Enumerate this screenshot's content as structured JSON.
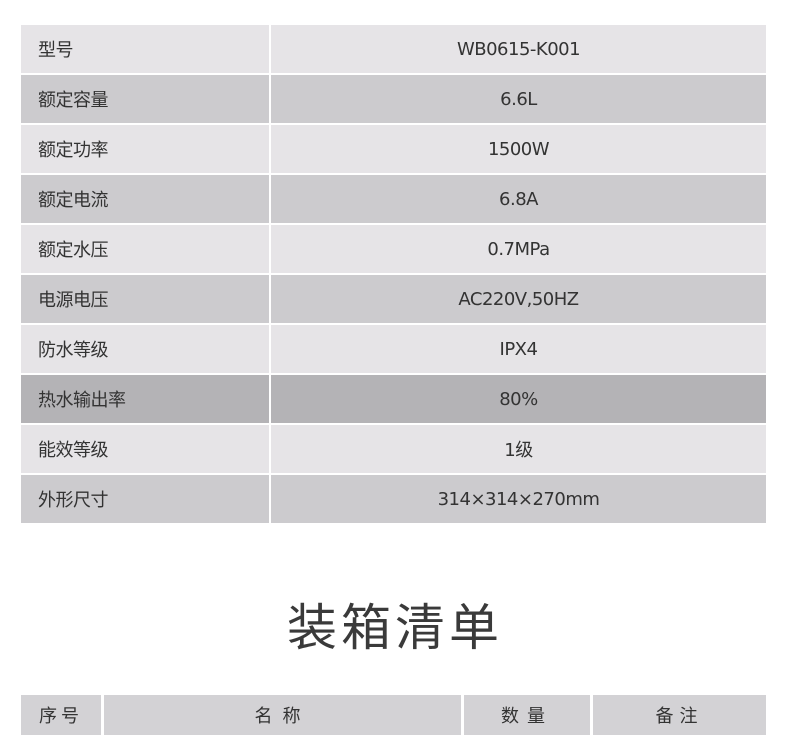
{
  "specs": [
    {
      "label": "型号",
      "value": "WB0615-K001"
    },
    {
      "label": "额定容量",
      "value": "6.6L"
    },
    {
      "label": "额定功率",
      "value": "1500W"
    },
    {
      "label": "额定电流",
      "value": "6.8A"
    },
    {
      "label": "额定水压",
      "value": "0.7MPa"
    },
    {
      "label": "电源电压",
      "value": "AC220V,50HZ"
    },
    {
      "label": "防水等级",
      "value": "IPX4"
    },
    {
      "label": "热水输出率",
      "value": "80%"
    },
    {
      "label": "能效等级",
      "value": "1级"
    },
    {
      "label": "外形尺寸",
      "value": "314×314×270mm"
    }
  ],
  "packing": {
    "title": "装箱清单",
    "headers": [
      "序号",
      "名称",
      "数量",
      "备注"
    ]
  },
  "colors": {
    "row_light": "#e6e4e7",
    "row_dark": "#cccbce",
    "row_highlight": "#b4b3b6",
    "header": "#d3d2d5"
  }
}
